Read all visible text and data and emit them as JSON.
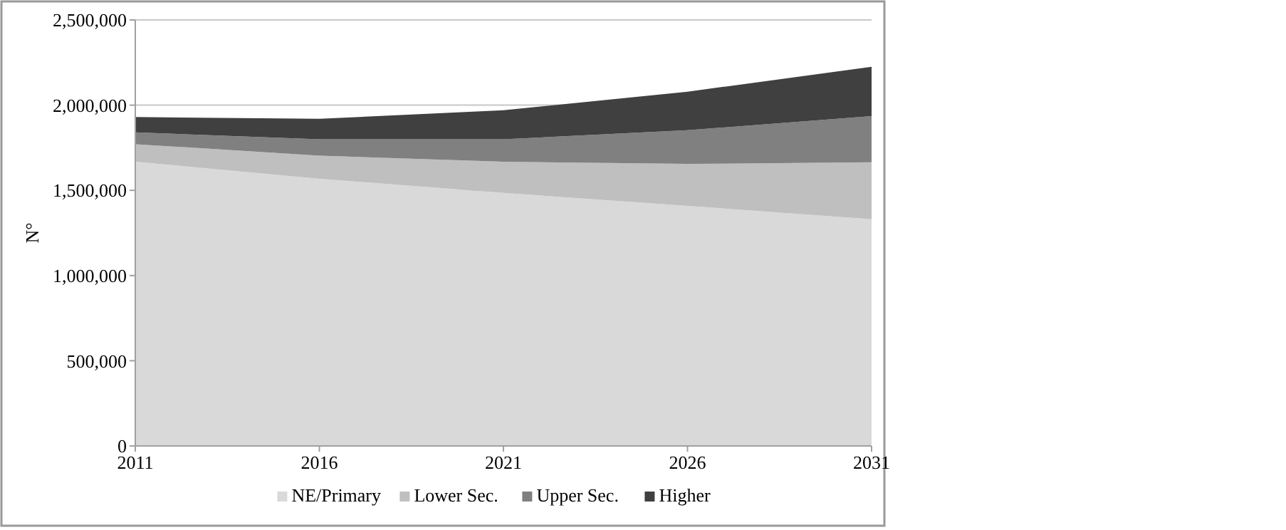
{
  "chart_data": {
    "type": "area",
    "stacked": true,
    "ylabel": "N°",
    "categories": [
      "2011",
      "2016",
      "2021",
      "2026",
      "2031"
    ],
    "series": [
      {
        "name": "NE/Primary",
        "color": "#d9d9d9",
        "values": [
          1668000,
          1568000,
          1485000,
          1409000,
          1330000
        ]
      },
      {
        "name": "Lower Sec.",
        "color": "#bfbfbf",
        "values": [
          103000,
          136000,
          183000,
          246000,
          335000
        ]
      },
      {
        "name": "Upper Sec.",
        "color": "#808080",
        "values": [
          69000,
          96000,
          132000,
          198000,
          271000
        ]
      },
      {
        "name": "Higher",
        "color": "#404040",
        "values": [
          90000,
          120000,
          170000,
          226000,
          289000
        ]
      }
    ],
    "ylim": [
      0,
      2500000
    ],
    "yticks": [
      {
        "value": 0,
        "label": "0"
      },
      {
        "value": 500000,
        "label": "500,000"
      },
      {
        "value": 1000000,
        "label": "1,000,000"
      },
      {
        "value": 1500000,
        "label": "1,500,000"
      },
      {
        "value": 2000000,
        "label": "2,000,000"
      },
      {
        "value": 2500000,
        "label": "2,500,000"
      }
    ],
    "grid": "y",
    "legend": "bottom"
  }
}
